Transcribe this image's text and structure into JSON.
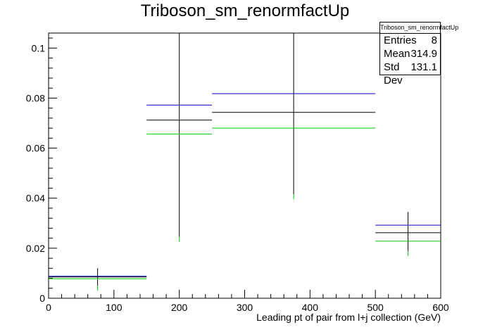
{
  "chart_data": {
    "type": "histogram",
    "title": "Triboson_sm_renormfactUp",
    "xlabel": "Leading pt of pair from l+j collection (GeV)",
    "ylabel": "",
    "xlim": [
      0,
      600
    ],
    "ylim": [
      0,
      0.106
    ],
    "x_ticks": [
      0,
      100,
      200,
      300,
      400,
      500,
      600
    ],
    "y_ticks": [
      0,
      0.02,
      0.04,
      0.06,
      0.08,
      0.1
    ],
    "x_tick_labels": [
      "0",
      "100",
      "200",
      "300",
      "400",
      "500",
      "600"
    ],
    "y_tick_labels": [
      "0",
      "0.02",
      "0.04",
      "0.06",
      "0.08",
      "0.1"
    ],
    "grid": false,
    "bins": [
      {
        "low": 0,
        "high": 150,
        "center": 75,
        "nominal": 0.0085,
        "up": 0.0088,
        "down": 0.0078,
        "err_low": 0.005,
        "err_high": 0.012
      },
      {
        "low": 150,
        "high": 250,
        "center": 200,
        "nominal": 0.0712,
        "up": 0.0772,
        "down": 0.0656,
        "err_low": 0.0245,
        "err_high": 0.106
      },
      {
        "low": 250,
        "high": 500,
        "center": 375,
        "nominal": 0.0743,
        "up": 0.0818,
        "down": 0.068,
        "err_low": 0.0415,
        "err_high": 0.106
      },
      {
        "low": 500,
        "high": 600,
        "center": 550,
        "nominal": 0.0262,
        "up": 0.0292,
        "down": 0.0228,
        "err_low": 0.0188,
        "err_high": 0.0345
      }
    ],
    "series": [
      {
        "name": "",
        "role": "nominal",
        "color": "#000000"
      },
      {
        "name": "",
        "role": "up",
        "color": "#0000cc"
      },
      {
        "name": "",
        "role": "down",
        "color": "#00cc00"
      }
    ],
    "stats": {
      "title": "Triboson_sm_renormfactUp",
      "rows": [
        {
          "label": "Entries",
          "value": "8"
        },
        {
          "label": "Mean",
          "value": "314.9"
        },
        {
          "label": "Std Dev",
          "value": "131.1"
        }
      ],
      "placement": "top-right"
    }
  }
}
